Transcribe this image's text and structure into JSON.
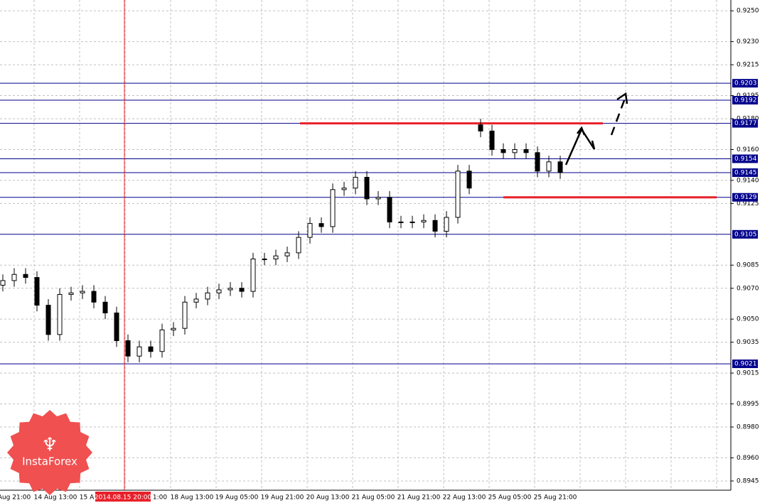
{
  "chart_data": {
    "type": "candlestick",
    "open": [
      0.9072,
      0.9075,
      0.9079,
      0.9077,
      0.9059,
      0.904,
      0.9066,
      0.9067,
      0.9068,
      0.9061,
      0.9054,
      0.9036,
      0.9026,
      0.9032,
      0.9029,
      0.9043,
      0.9044,
      0.9061,
      0.9063,
      0.9067,
      0.9069,
      0.907,
      0.9068,
      0.9089,
      0.9089,
      0.9091,
      0.9093,
      0.9103,
      0.9112,
      0.911,
      0.9134,
      0.9135,
      0.9142,
      0.9128,
      0.9129,
      0.9113,
      0.9113,
      0.9113,
      0.9114,
      0.9107,
      0.9116,
      0.9146,
      0.9176,
      0.9172,
      0.916,
      0.9158,
      0.916,
      0.9158,
      0.9146,
      0.9152
    ],
    "high": [
      0.9079,
      0.9083,
      0.9083,
      0.9081,
      0.9063,
      0.907,
      0.9071,
      0.9072,
      0.9072,
      0.9065,
      0.9058,
      0.904,
      0.9036,
      0.9036,
      0.9047,
      0.9048,
      0.9065,
      0.9067,
      0.9071,
      0.9073,
      0.9074,
      0.9074,
      0.9093,
      0.9093,
      0.9095,
      0.9097,
      0.9107,
      0.9116,
      0.9116,
      0.9138,
      0.9139,
      0.9146,
      0.9146,
      0.9133,
      0.9133,
      0.9117,
      0.9117,
      0.9118,
      0.9118,
      0.912,
      0.915,
      0.915,
      0.918,
      0.9176,
      0.9164,
      0.9164,
      0.9164,
      0.9162,
      0.9156,
      0.9156
    ],
    "low": [
      0.9068,
      0.9071,
      0.9073,
      0.9055,
      0.9036,
      0.9036,
      0.9062,
      0.9063,
      0.9057,
      0.905,
      0.9032,
      0.9022,
      0.9022,
      0.9025,
      0.9025,
      0.9039,
      0.904,
      0.9057,
      0.9059,
      0.9063,
      0.9065,
      0.9064,
      0.9064,
      0.9085,
      0.9085,
      0.9087,
      0.9089,
      0.9099,
      0.9106,
      0.9106,
      0.913,
      0.9131,
      0.9124,
      0.9124,
      0.9109,
      0.9109,
      0.9109,
      0.9109,
      0.9103,
      0.9103,
      0.9112,
      0.9131,
      0.9168,
      0.9156,
      0.9154,
      0.9154,
      0.9154,
      0.9142,
      0.9142,
      0.9141
    ],
    "close": [
      0.9075,
      0.9079,
      0.9077,
      0.9059,
      0.904,
      0.9066,
      0.9067,
      0.9068,
      0.9061,
      0.9054,
      0.9036,
      0.9026,
      0.9032,
      0.9029,
      0.9043,
      0.9044,
      0.9061,
      0.9063,
      0.9067,
      0.9069,
      0.907,
      0.9068,
      0.9089,
      0.9089,
      0.9091,
      0.9093,
      0.9103,
      0.9112,
      0.911,
      0.9134,
      0.9135,
      0.9142,
      0.9128,
      0.9129,
      0.9113,
      0.9113,
      0.9113,
      0.9114,
      0.9107,
      0.9116,
      0.9146,
      0.9135,
      0.9172,
      0.916,
      0.9158,
      0.916,
      0.9158,
      0.9146,
      0.9152,
      0.9145
    ],
    "x_labels": [
      "Aug 21:00",
      "14 Aug 13:00",
      "15 A",
      "1:00",
      "18 Aug 13:00",
      "19 Aug 05:00",
      "19 Aug 21:00",
      "20 Aug 13:00",
      "21 Aug 05:00",
      "21 Aug 21:00",
      "22 Aug 13:00",
      "25 Aug 05:00",
      "25 Aug 21:00"
    ],
    "cursor_label": "2014.08.15 20:00",
    "ylim": [
      0.8939,
      0.9257
    ],
    "yticks": [
      {
        "value": 0.925,
        "label": "0.9250"
      },
      {
        "value": 0.923,
        "label": "0.9230"
      },
      {
        "value": 0.9215,
        "label": "0.9215"
      },
      {
        "value": 0.9195,
        "label": "0.9195"
      },
      {
        "value": 0.918,
        "label": "0.9180"
      },
      {
        "value": 0.916,
        "label": "0.9160"
      },
      {
        "value": 0.914,
        "label": "0.9140"
      },
      {
        "value": 0.9125,
        "label": "0.9125"
      },
      {
        "value": 0.9085,
        "label": "0.9085"
      },
      {
        "value": 0.907,
        "label": "0.9070"
      },
      {
        "value": 0.905,
        "label": "0.9050"
      },
      {
        "value": 0.9035,
        "label": "0.9035"
      },
      {
        "value": 0.9015,
        "label": "0.9015"
      },
      {
        "value": 0.8995,
        "label": "0.8995"
      },
      {
        "value": 0.898,
        "label": "0.8980"
      },
      {
        "value": 0.896,
        "label": "0.8960"
      },
      {
        "value": 0.8945,
        "label": "0.8945"
      }
    ],
    "levels": [
      {
        "value": 0.9203,
        "label": "0.9203"
      },
      {
        "value": 0.9192,
        "label": "0.9192"
      },
      {
        "value": 0.9177,
        "label": "0.9177"
      },
      {
        "value": 0.9154,
        "label": "0.9154"
      },
      {
        "value": 0.9145,
        "label": "0.9145"
      },
      {
        "value": 0.9129,
        "label": "0.9129"
      },
      {
        "value": 0.9105,
        "label": "0.9105"
      },
      {
        "value": 0.9021,
        "label": "0.9021"
      }
    ],
    "level_color": "#00008b",
    "red_lines": [
      {
        "value": 0.9177
      },
      {
        "value": 0.9129
      }
    ],
    "red_color": "#e8202a",
    "grid": true,
    "watermark": "InstaForex"
  }
}
